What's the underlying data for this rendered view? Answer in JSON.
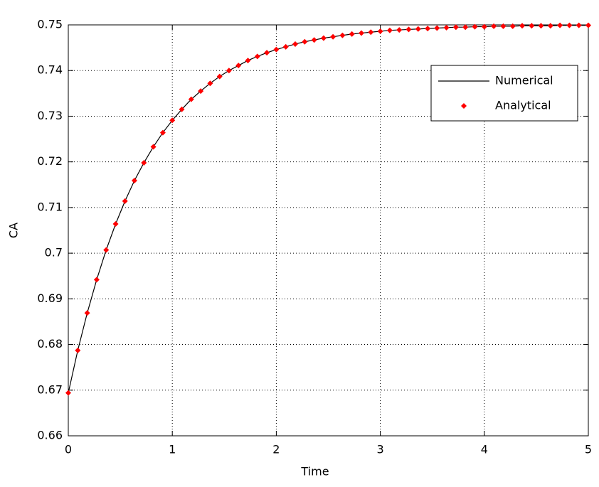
{
  "chart_data": {
    "type": "line",
    "xlabel": "Time",
    "ylabel": "CA",
    "x": [
      0,
      0.091,
      0.182,
      0.273,
      0.364,
      0.455,
      0.545,
      0.636,
      0.727,
      0.818,
      0.909,
      1,
      1.091,
      1.182,
      1.273,
      1.364,
      1.455,
      1.545,
      1.636,
      1.727,
      1.818,
      1.909,
      2,
      2.091,
      2.182,
      2.273,
      2.364,
      2.455,
      2.545,
      2.636,
      2.727,
      2.818,
      2.909,
      3,
      3.091,
      3.182,
      3.273,
      3.364,
      3.455,
      3.545,
      3.636,
      3.727,
      3.818,
      3.909,
      4,
      4.091,
      4.182,
      4.273,
      4.364,
      4.455,
      4.545,
      4.636,
      4.727,
      4.818,
      4.909,
      5
    ],
    "series": [
      {
        "name": "Numerical",
        "color": "#000000",
        "style": "line",
        "values": [
          0.6694,
          0.6787,
          0.6869,
          0.6942,
          0.7007,
          0.7064,
          0.7114,
          0.7159,
          0.7198,
          0.7233,
          0.7264,
          0.7291,
          0.7315,
          0.7337,
          0.7355,
          0.7372,
          0.7387,
          0.74,
          0.7411,
          0.7422,
          0.7431,
          0.7439,
          0.7446,
          0.7452,
          0.7458,
          0.7463,
          0.7467,
          0.7471,
          0.7474,
          0.7477,
          0.748,
          0.7482,
          0.7484,
          0.7486,
          0.7488,
          0.7489,
          0.749,
          0.7491,
          0.7492,
          0.7493,
          0.7494,
          0.7495,
          0.7495,
          0.7496,
          0.7496,
          0.7497,
          0.7497,
          0.7497,
          0.7498,
          0.7498,
          0.7498,
          0.7498,
          0.7499,
          0.7499,
          0.7499,
          0.7499
        ]
      },
      {
        "name": "Analytical",
        "color": "#ff0000",
        "style": "markers",
        "values": [
          0.6694,
          0.6787,
          0.6869,
          0.6942,
          0.7007,
          0.7064,
          0.7114,
          0.7159,
          0.7198,
          0.7233,
          0.7264,
          0.7291,
          0.7315,
          0.7337,
          0.7355,
          0.7372,
          0.7387,
          0.74,
          0.7411,
          0.7422,
          0.7431,
          0.7439,
          0.7446,
          0.7452,
          0.7458,
          0.7463,
          0.7467,
          0.7471,
          0.7474,
          0.7477,
          0.748,
          0.7482,
          0.7484,
          0.7486,
          0.7488,
          0.7489,
          0.749,
          0.7491,
          0.7492,
          0.7493,
          0.7494,
          0.7495,
          0.7495,
          0.7496,
          0.7496,
          0.7497,
          0.7497,
          0.7497,
          0.7498,
          0.7498,
          0.7498,
          0.7498,
          0.7499,
          0.7499,
          0.7499,
          0.7499
        ]
      }
    ],
    "xlim": [
      0,
      5
    ],
    "xticks": [
      0,
      1,
      2,
      3,
      4,
      5
    ],
    "ylim": [
      0.66,
      0.75
    ],
    "yticks": [
      0.66,
      0.67,
      0.68,
      0.69,
      0.7,
      0.71,
      0.72,
      0.73,
      0.74,
      0.75
    ],
    "grid": true,
    "legend": "upper-right"
  }
}
